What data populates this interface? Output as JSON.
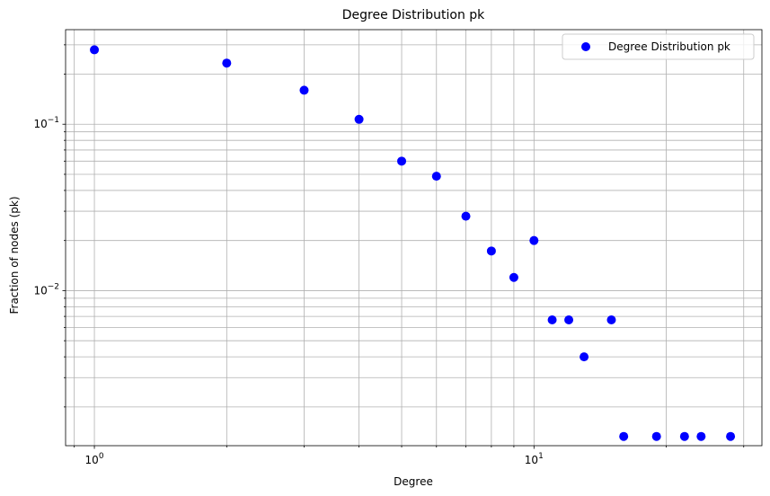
{
  "chart_data": {
    "type": "scatter",
    "title": "Degree Distribution pk",
    "xlabel": "Degree",
    "ylabel": "Fraction of nodes (pk)",
    "xscale": "log",
    "yscale": "log",
    "xlim": [
      0.86,
      33
    ],
    "ylim": [
      0.00117,
      0.37
    ],
    "grid": "both (major and minor)",
    "legend_position": "top-right",
    "x_ticks": [
      {
        "base": "10",
        "exp": "0",
        "value": 1
      },
      {
        "base": "10",
        "exp": "1",
        "value": 10
      }
    ],
    "y_ticks": [
      {
        "base": "10",
        "exp": "−2",
        "value": 0.01
      },
      {
        "base": "10",
        "exp": "−1",
        "value": 0.1
      }
    ],
    "series": [
      {
        "name": "Degree Distribution pk",
        "color": "#0000ff",
        "points": [
          {
            "x": 1,
            "y": 0.28
          },
          {
            "x": 2,
            "y": 0.233
          },
          {
            "x": 3,
            "y": 0.16
          },
          {
            "x": 4,
            "y": 0.107
          },
          {
            "x": 5,
            "y": 0.06
          },
          {
            "x": 6,
            "y": 0.0487
          },
          {
            "x": 7,
            "y": 0.028
          },
          {
            "x": 8,
            "y": 0.0173
          },
          {
            "x": 9,
            "y": 0.012
          },
          {
            "x": 10,
            "y": 0.02
          },
          {
            "x": 11,
            "y": 0.00667
          },
          {
            "x": 12,
            "y": 0.00667
          },
          {
            "x": 13,
            "y": 0.004
          },
          {
            "x": 15,
            "y": 0.00667
          },
          {
            "x": 16,
            "y": 0.00133
          },
          {
            "x": 19,
            "y": 0.00133
          },
          {
            "x": 22,
            "y": 0.00133
          },
          {
            "x": 24,
            "y": 0.00133
          },
          {
            "x": 28,
            "y": 0.00133
          }
        ]
      }
    ]
  }
}
